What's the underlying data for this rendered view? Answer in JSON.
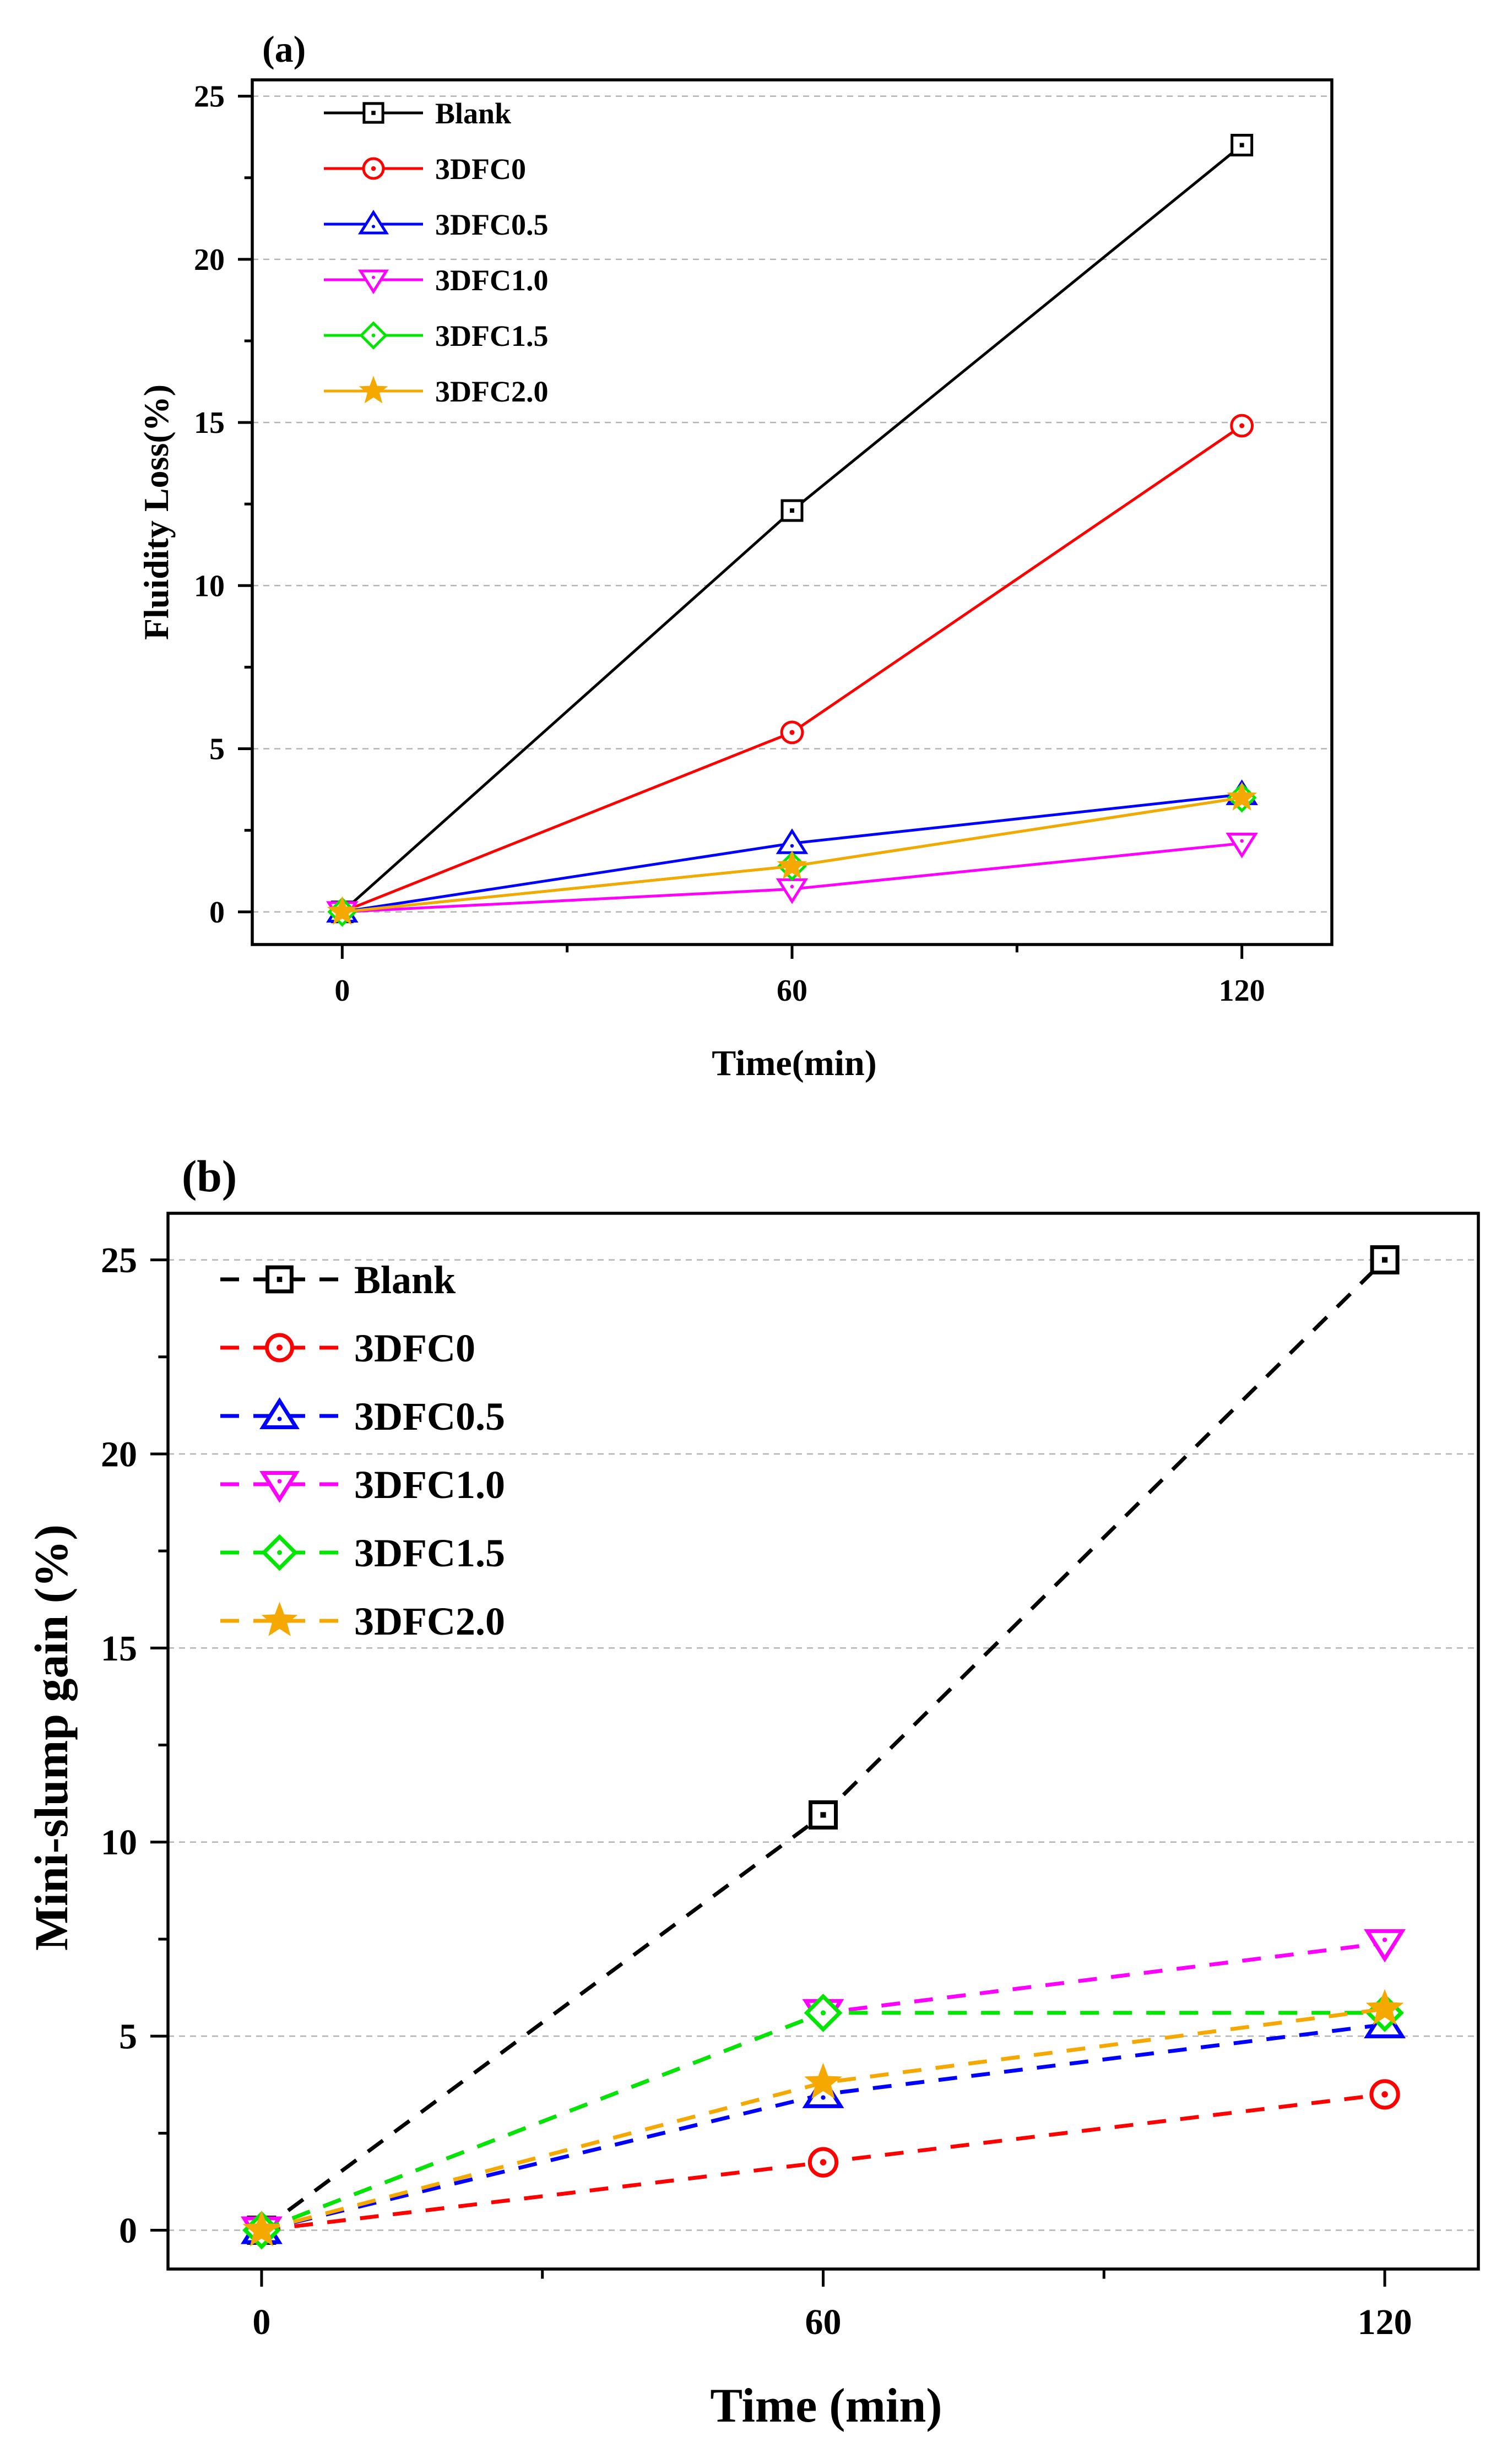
{
  "chart_data": [
    {
      "id": "a",
      "type": "line",
      "panel_label": "(a)",
      "xlabel": "Time(min)",
      "ylabel": "Fluidity Loss(%)",
      "x": [
        0,
        60,
        120
      ],
      "x_ticks": [
        "0",
        "60",
        "120"
      ],
      "xlim": [
        -12,
        132
      ],
      "ylim": [
        -1,
        25.5
      ],
      "y_ticks": [
        "0",
        "5",
        "10",
        "15",
        "20",
        "25"
      ],
      "grid": true,
      "line_style": "solid",
      "legend_position": "top-left",
      "series": [
        {
          "name": "Blank",
          "color": "#000000",
          "marker": "square",
          "values": [
            0,
            12.3,
            23.5
          ]
        },
        {
          "name": "3DFC0",
          "color": "#ff0000",
          "marker": "circle",
          "values": [
            0,
            5.5,
            14.9
          ]
        },
        {
          "name": "3DFC0.5",
          "color": "#0000ff",
          "marker": "triangle-up",
          "values": [
            0,
            2.1,
            3.6
          ]
        },
        {
          "name": "3DFC1.0",
          "color": "#ff00ff",
          "marker": "triangle-down",
          "values": [
            0,
            0.7,
            2.1
          ]
        },
        {
          "name": "3DFC1.5",
          "color": "#00e600",
          "marker": "diamond",
          "values": [
            0,
            1.4,
            3.5
          ]
        },
        {
          "name": "3DFC2.0",
          "color": "#f5a800",
          "marker": "star",
          "values": [
            0,
            1.4,
            3.5
          ]
        }
      ]
    },
    {
      "id": "b",
      "type": "line",
      "panel_label": "(b)",
      "xlabel": "Time (min)",
      "ylabel": "Mini-slump gain (%)",
      "x": [
        0,
        60,
        120
      ],
      "x_ticks": [
        "0",
        "60",
        "120"
      ],
      "xlim": [
        -10,
        130
      ],
      "ylim": [
        -1,
        26.2
      ],
      "y_ticks": [
        "0",
        "5",
        "10",
        "15",
        "20",
        "25"
      ],
      "grid": true,
      "line_style": "dashed",
      "legend_position": "top-left",
      "series": [
        {
          "name": "Blank",
          "color": "#000000",
          "marker": "square",
          "values": [
            0,
            10.7,
            25.0
          ]
        },
        {
          "name": "3DFC0",
          "color": "#ff0000",
          "marker": "circle",
          "values": [
            0,
            1.75,
            3.5
          ]
        },
        {
          "name": "3DFC0.5",
          "color": "#0000ff",
          "marker": "triangle-up",
          "values": [
            0,
            3.5,
            5.3
          ]
        },
        {
          "name": "3DFC1.0",
          "color": "#ff00ff",
          "marker": "triangle-down",
          "values": [
            0,
            5.6,
            7.4
          ]
        },
        {
          "name": "3DFC1.5",
          "color": "#00e600",
          "marker": "diamond",
          "values": [
            0,
            5.6,
            5.6
          ]
        },
        {
          "name": "3DFC2.0",
          "color": "#f5a800",
          "marker": "star",
          "values": [
            0,
            3.8,
            5.7
          ]
        }
      ]
    }
  ]
}
